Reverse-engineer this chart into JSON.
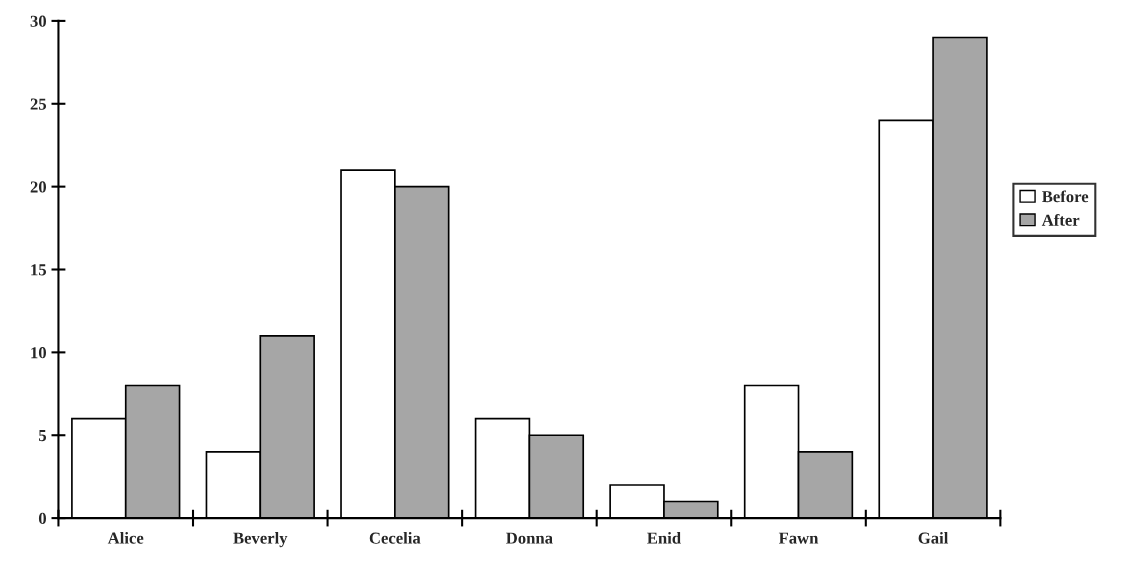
{
  "chart_data": {
    "type": "bar",
    "categories": [
      "Alice",
      "Beverly",
      "Cecelia",
      "Donna",
      "Enid",
      "Fawn",
      "Gail"
    ],
    "series": [
      {
        "name": "Before",
        "color": "#ffffff",
        "values": [
          6,
          4,
          21,
          6,
          2,
          8,
          24
        ]
      },
      {
        "name": "After",
        "color": "#a6a6a6",
        "values": [
          8,
          11,
          20,
          5,
          1,
          4,
          29
        ]
      }
    ],
    "ylim": [
      0,
      30
    ],
    "yticks": [
      0,
      5,
      10,
      15,
      20,
      25,
      30
    ],
    "grid": false,
    "legend": "right"
  }
}
